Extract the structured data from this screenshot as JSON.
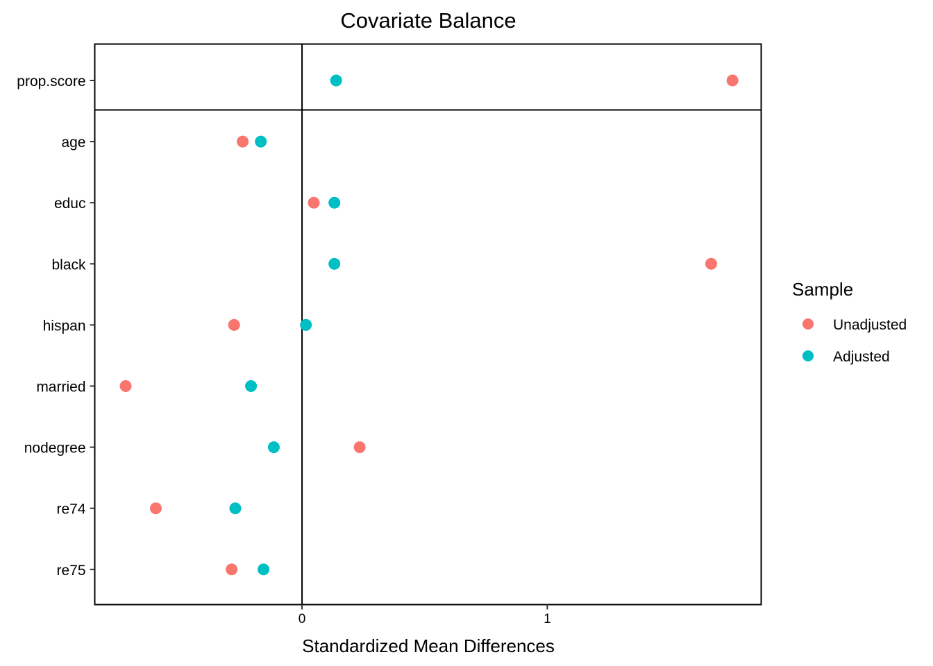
{
  "chart_data": {
    "type": "scatter",
    "title": "Covariate Balance",
    "xlabel": "Standardized Mean Differences",
    "ylabel": "",
    "xlim": [
      -0.845,
      1.872
    ],
    "x_ticks": [
      "0",
      "1"
    ],
    "x_tick_values": [
      0,
      1
    ],
    "vertical_reference_line": 0,
    "categories": [
      "prop.score",
      "age",
      "educ",
      "black",
      "hispan",
      "married",
      "nodegree",
      "re74",
      "re75"
    ],
    "series": [
      {
        "name": "Unadjusted",
        "color": "#F8766D",
        "values": [
          1.755,
          -0.242,
          0.048,
          1.668,
          -0.277,
          -0.719,
          0.235,
          -0.596,
          -0.287
        ]
      },
      {
        "name": "Adjusted",
        "color": "#00BFC4",
        "values": [
          0.139,
          -0.168,
          0.132,
          0.132,
          0.016,
          -0.208,
          -0.115,
          -0.272,
          -0.157
        ]
      }
    ],
    "legend": {
      "title": "Sample",
      "position": "right"
    },
    "grid": false
  }
}
